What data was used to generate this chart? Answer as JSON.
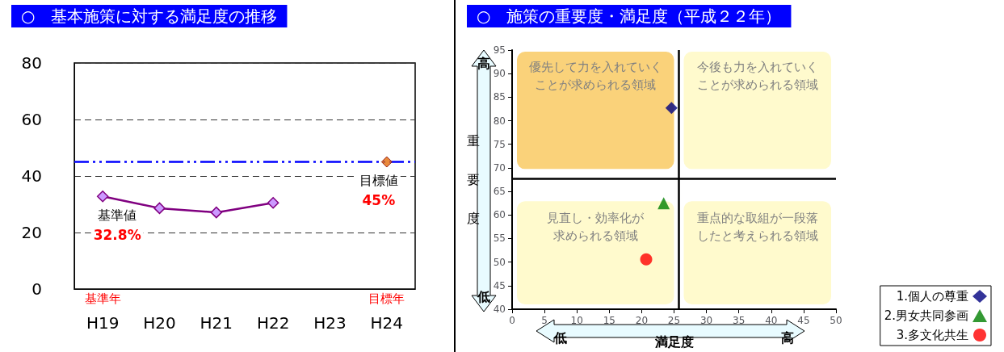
{
  "chart_data": [
    {
      "type": "line",
      "title": "○　基本施策に対する満足度の推移",
      "categories": [
        "H19",
        "H20",
        "H21",
        "H22",
        "H23",
        "H24"
      ],
      "series": [
        {
          "color": "#800080",
          "values": [
            32.8,
            28.6,
            27.1,
            30.5,
            null,
            null
          ]
        },
        {
          "type": "scatter",
          "color": "#e46c0a",
          "values": [
            null,
            null,
            null,
            null,
            null,
            45
          ]
        }
      ],
      "ylim": [
        0,
        80
      ],
      "yticks": [
        0,
        20,
        40,
        60,
        80
      ],
      "grid": "y",
      "marker": "diamond",
      "legend": false,
      "ref_lines": [
        {
          "axis": "y",
          "value": 45,
          "color": "#0000ff",
          "line_style": "dashed"
        }
      ],
      "annotations": [
        {
          "text": "基準値",
          "x": "H19",
          "y": 32.8
        },
        {
          "text": "32.8%",
          "x": "H19",
          "y": 32.8
        },
        {
          "text": "目標値",
          "x": "H24",
          "y": 45
        },
        {
          "text": "45%",
          "x": "H24",
          "y": 45
        },
        "基準年",
        "目標年"
      ]
    },
    {
      "type": "scatter",
      "title": "○　施策の重要度・満足度（平成２２年）",
      "xlabel": "満足度",
      "ylabel": "重要度",
      "series": [
        {
          "name": "1.個人の尊重",
          "color": "#000080",
          "marker": "diamond",
          "x": [
            24.6
          ],
          "values": [
            82.7
          ]
        },
        {
          "name": "2.男女共同参画",
          "color": "#008000",
          "marker": "triangle",
          "x": [
            23.4
          ],
          "values": [
            62.5
          ]
        },
        {
          "name": "3.多文化共生",
          "color": "#ff0000",
          "marker": "circle",
          "x": [
            20.7
          ],
          "values": [
            50.6
          ]
        }
      ],
      "xlim": [
        0,
        50
      ],
      "xticks": [
        0,
        5,
        10,
        15,
        20,
        25,
        30,
        35,
        40,
        45,
        50
      ],
      "ylim": [
        40,
        95
      ],
      "yticks": [
        40,
        45,
        50,
        55,
        60,
        65,
        70,
        75,
        80,
        85,
        90,
        95
      ],
      "grid": false,
      "legend": "bottom right",
      "ref_lines": [
        {
          "axis": "x",
          "value": 25.75,
          "color": "#000000"
        },
        {
          "axis": "y",
          "value": 67.7,
          "color": "#000000"
        }
      ],
      "annotations": [
        "優先して力を入れていくことが求められる領域",
        "今後も力を入れていくことが求められる領域",
        "見直し・効率化が求められる領域",
        "重点的な取組が一段落したと考えられる領域",
        "高",
        "低",
        "低",
        "高"
      ]
    }
  ]
}
